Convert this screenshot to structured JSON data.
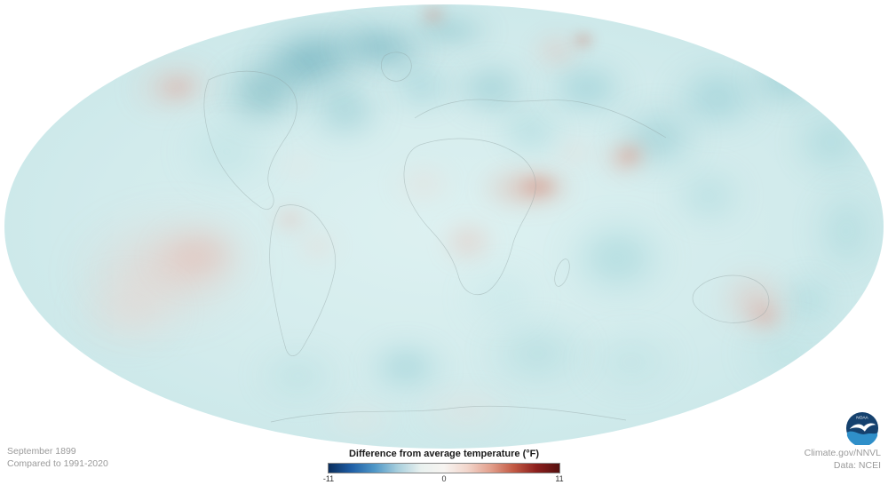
{
  "map": {
    "date_label": "September 1899",
    "baseline_label": "Compared to 1991-2020"
  },
  "legend": {
    "title": "Difference from average temperature",
    "units": "(°F)",
    "tick_min": "-11",
    "tick_mid": "0",
    "tick_max": "11",
    "scale_min": -11,
    "scale_max": 11,
    "gradient": [
      "#0a2d5c",
      "#1f5fa6",
      "#4f97c7",
      "#a8cfdd",
      "#e9f1ef",
      "#f7f4f1",
      "#f2d6cc",
      "#e3a18e",
      "#c35b45",
      "#8c1f1d",
      "#55100f"
    ]
  },
  "credits": {
    "source": "Climate.gov/NNVL",
    "data": "Data: NCEI"
  },
  "logo": {
    "label": "NOAA"
  },
  "palette": {
    "cool_dark": "#2b8a9e",
    "cool_mid": "#6bbcc4",
    "base": "#d2ebec",
    "warm_light": "#f2cdc5",
    "warm_deep": "#cf6048"
  }
}
